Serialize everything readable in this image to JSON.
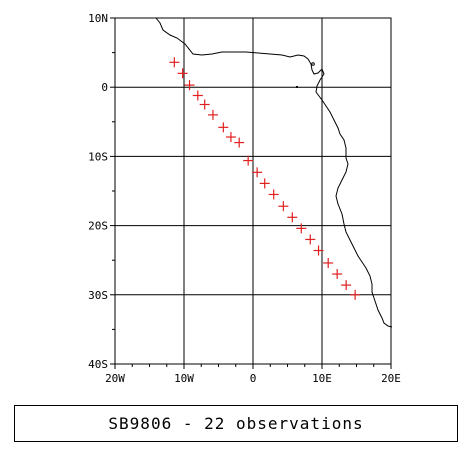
{
  "colors": {
    "marker": "#e02020",
    "grid": "#000000",
    "coast": "#000000"
  },
  "map": {
    "lon_range": [
      -20,
      20
    ],
    "lat_range": [
      -40,
      10
    ],
    "lon_ticks": [
      {
        "value": -20,
        "label": "20W"
      },
      {
        "value": -10,
        "label": "10W"
      },
      {
        "value": 0,
        "label": "0"
      },
      {
        "value": 10,
        "label": "10E"
      },
      {
        "value": 20,
        "label": "20E"
      }
    ],
    "lat_ticks": [
      {
        "value": 10,
        "label": "10N"
      },
      {
        "value": 0,
        "label": "0"
      },
      {
        "value": -10,
        "label": "10S"
      },
      {
        "value": -20,
        "label": "20S"
      },
      {
        "value": -30,
        "label": "30S"
      },
      {
        "value": -40,
        "label": "40S"
      }
    ],
    "grid": true,
    "marker_symbol": "+",
    "observations": [
      {
        "lon": -11.4,
        "lat": 3.6
      },
      {
        "lon": -10.2,
        "lat": 2.0
      },
      {
        "lon": -9.2,
        "lat": 0.3
      },
      {
        "lon": -8.0,
        "lat": -1.2
      },
      {
        "lon": -7.0,
        "lat": -2.5
      },
      {
        "lon": -5.8,
        "lat": -4.0
      },
      {
        "lon": -4.3,
        "lat": -5.8
      },
      {
        "lon": -3.2,
        "lat": -7.2
      },
      {
        "lon": -2.0,
        "lat": -8.0
      },
      {
        "lon": -0.7,
        "lat": -10.6
      },
      {
        "lon": 0.6,
        "lat": -12.3
      },
      {
        "lon": 1.7,
        "lat": -13.9
      },
      {
        "lon": 3.0,
        "lat": -15.5
      },
      {
        "lon": 4.4,
        "lat": -17.2
      },
      {
        "lon": 5.7,
        "lat": -18.8
      },
      {
        "lon": 7.0,
        "lat": -20.4
      },
      {
        "lon": 8.3,
        "lat": -22.0
      },
      {
        "lon": 9.5,
        "lat": -23.6
      },
      {
        "lon": 10.9,
        "lat": -25.4
      },
      {
        "lon": 12.2,
        "lat": -27.0
      },
      {
        "lon": 13.5,
        "lat": -28.6
      },
      {
        "lon": 14.8,
        "lat": -30.0
      }
    ]
  },
  "caption": "SB9806 - 22 observations"
}
